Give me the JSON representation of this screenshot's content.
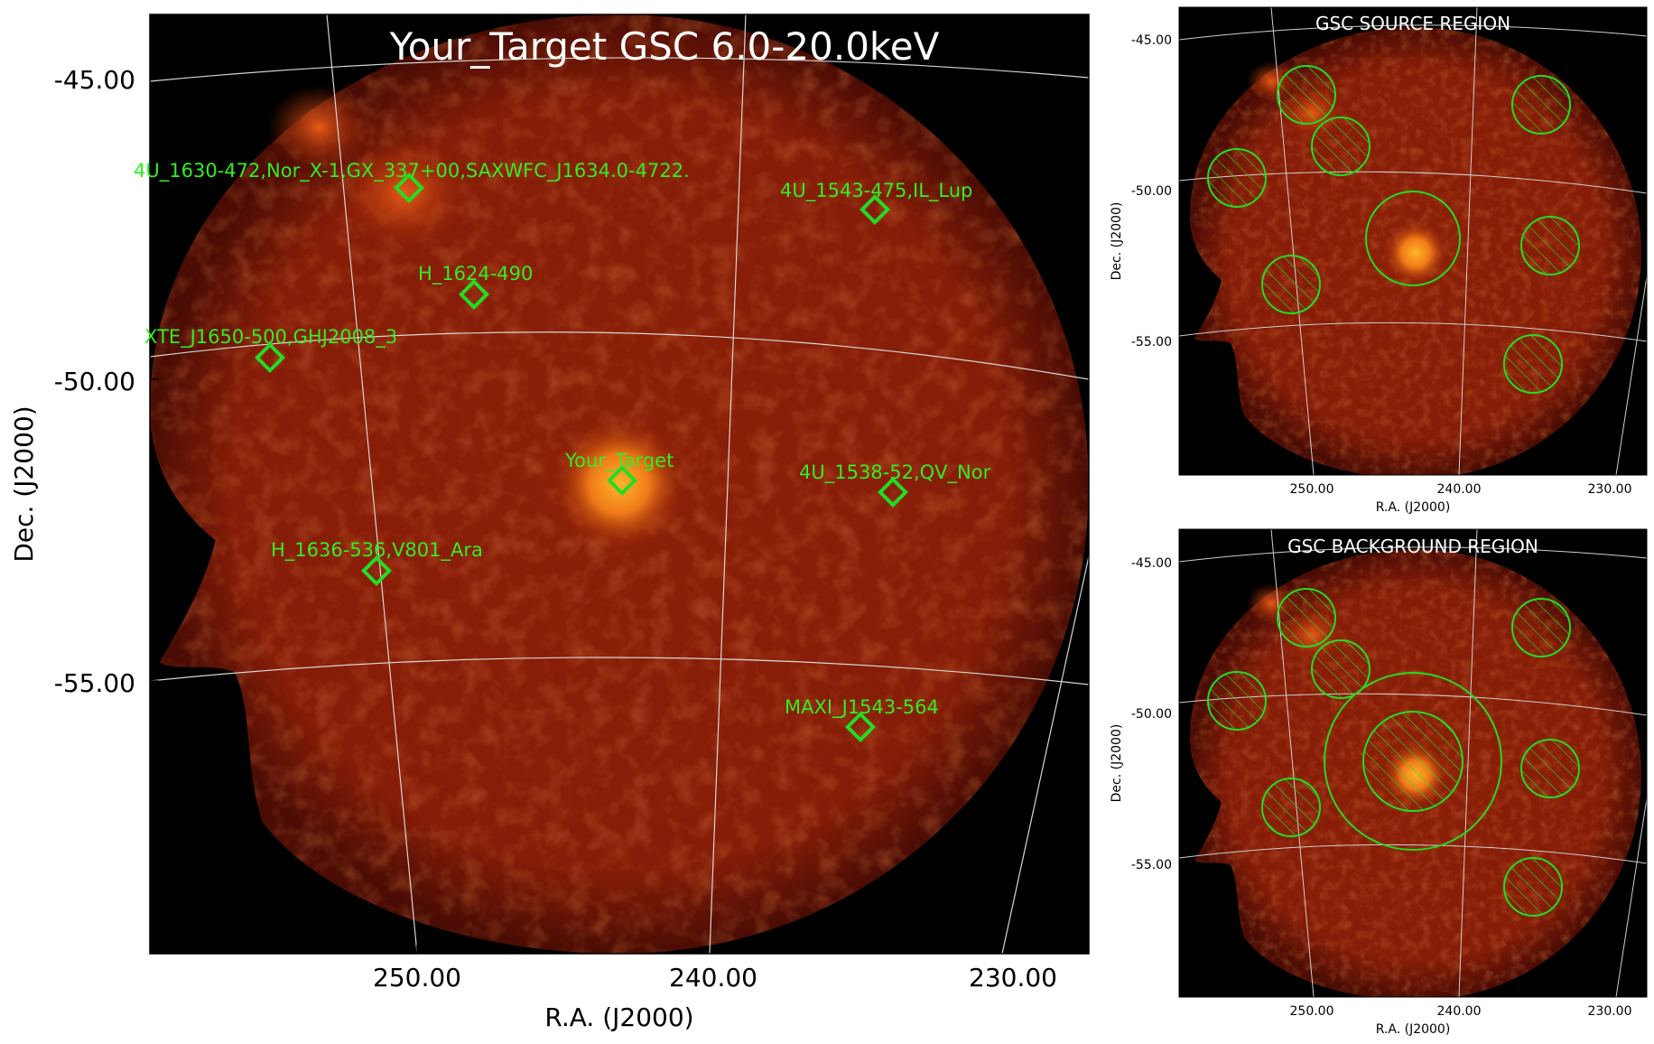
{
  "main": {
    "title": "Your_Target GSC 6.0-20.0keV",
    "xlabel": "R.A. (J2000)",
    "ylabel": "Dec. (J2000)",
    "dec_ticks": [
      "-45.00",
      "-50.00",
      "-55.00"
    ],
    "ra_ticks": [
      "250.00",
      "240.00",
      "230.00"
    ],
    "sources": [
      {
        "label": "4U_1630-472,Nor_X-1,GX_337+00,SAXWFC_J1634.0-4722."
      },
      {
        "label": "4U_1543-475,IL_Lup"
      },
      {
        "label": "H_1624-490"
      },
      {
        "label": "XTE_J1650-500,GHJ2008_3"
      },
      {
        "label": "Your_Target"
      },
      {
        "label": "4U_1538-52,QV_Nor"
      },
      {
        "label": "H_1636-536,V801_Ara"
      },
      {
        "label": "MAXI_J1543-564"
      }
    ]
  },
  "source_panel": {
    "title": "GSC SOURCE REGION",
    "xlabel": "R.A. (J2000)",
    "ylabel": "Dec. (J2000)",
    "dec_ticks": [
      "-45.00",
      "-50.00",
      "-55.00"
    ],
    "ra_ticks": [
      "250.00",
      "240.00",
      "230.00"
    ]
  },
  "background_panel": {
    "title": "GSC BACKGROUND REGION",
    "xlabel": "R.A. (J2000)",
    "ylabel": "Dec. (J2000)",
    "dec_ticks": [
      "-45.00",
      "-50.00",
      "-55.00"
    ],
    "ra_ticks": [
      "250.00",
      "240.00",
      "230.00"
    ]
  },
  "colors": {
    "marker": "#22dd22",
    "grid": "#cfcfcf",
    "sky_bright": "#ffb020",
    "sky_base": "#8a1e08"
  }
}
